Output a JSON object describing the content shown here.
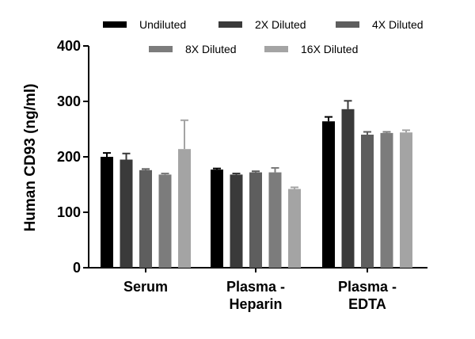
{
  "chart_data": {
    "type": "bar",
    "ylabel": "Human CD93 (ng/ml)",
    "ylim": [
      0,
      400
    ],
    "yticks": [
      0,
      100,
      200,
      300,
      400
    ],
    "categories": [
      [
        "Serum"
      ],
      [
        "Plasma -",
        "Heparin"
      ],
      [
        "Plasma -",
        "EDTA"
      ]
    ],
    "series": [
      {
        "name": "Undiluted",
        "color": "#000000",
        "values": [
          200,
          177,
          264
        ],
        "errors": [
          7,
          2,
          8
        ]
      },
      {
        "name": "2X Diluted",
        "color": "#3a3a3a",
        "values": [
          195,
          168,
          286
        ],
        "errors": [
          11,
          2,
          15
        ]
      },
      {
        "name": "4X Diluted",
        "color": "#5e5e5e",
        "values": [
          176,
          172,
          240
        ],
        "errors": [
          2,
          2,
          5
        ]
      },
      {
        "name": "8X Diluted",
        "color": "#7c7c7c",
        "values": [
          168,
          172,
          243
        ],
        "errors": [
          2,
          8,
          2
        ]
      },
      {
        "name": "16X Diluted",
        "color": "#a4a4a4",
        "values": [
          214,
          142,
          244
        ],
        "errors": [
          52,
          3,
          4
        ]
      }
    ],
    "legend_position": "top",
    "grid": false
  }
}
